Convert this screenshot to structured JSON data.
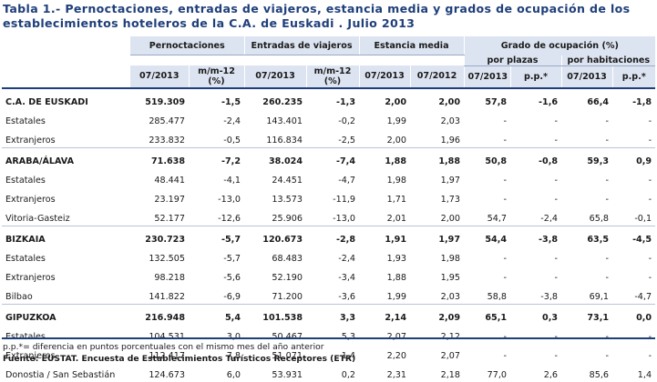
{
  "title": "Tabla 1.- Pernoctaciones, entradas de viajeros, estancia media y grados de ocupación de los establecimientos hoteleros de la C.A. de Euskadi . Julio 2013",
  "headers": {
    "pernoctaciones": "Pernoctaciones",
    "entradas": "Entradas de viajeros",
    "estancia": "Estancia media",
    "grado": "Grado de ocupación (%)",
    "por_plazas": "por plazas",
    "por_habitaciones": "por habitaciones",
    "cols": [
      "07/2013",
      "m/m-12 (%)",
      "07/2013",
      "m/m-12 (%)",
      "07/2013",
      "07/2012",
      "07/2013",
      "p.p.*",
      "07/2013",
      "p.p.*"
    ]
  },
  "rows": [
    {
      "type": "section",
      "label": "C.A. DE EUSKADI",
      "v": [
        "519.309",
        "-1,5",
        "260.235",
        "-1,3",
        "2,00",
        "2,00",
        "57,8",
        "-1,6",
        "66,4",
        "-1,8"
      ]
    },
    {
      "type": "sub",
      "label": "Estatales",
      "v": [
        "285.477",
        "-2,4",
        "143.401",
        "-0,2",
        "1,99",
        "2,03",
        "-",
        "-",
        "-",
        "-"
      ]
    },
    {
      "type": "sub",
      "label": "Extranjeros",
      "v": [
        "233.832",
        "-0,5",
        "116.834",
        "-2,5",
        "2,00",
        "1,96",
        "-",
        "-",
        "-",
        "-"
      ]
    },
    {
      "type": "section",
      "label": "ARABA/ÁLAVA",
      "v": [
        "71.638",
        "-7,2",
        "38.024",
        "-7,4",
        "1,88",
        "1,88",
        "50,8",
        "-0,8",
        "59,3",
        "0,9"
      ]
    },
    {
      "type": "sub",
      "label": "Estatales",
      "v": [
        "48.441",
        "-4,1",
        "24.451",
        "-4,7",
        "1,98",
        "1,97",
        "-",
        "-",
        "-",
        "-"
      ]
    },
    {
      "type": "sub",
      "label": "Extranjeros",
      "v": [
        "23.197",
        "-13,0",
        "13.573",
        "-11,9",
        "1,71",
        "1,73",
        "-",
        "-",
        "-",
        "-"
      ]
    },
    {
      "type": "sub",
      "label": "Vitoria-Gasteiz",
      "v": [
        "52.177",
        "-12,6",
        "25.906",
        "-13,0",
        "2,01",
        "2,00",
        "54,7",
        "-2,4",
        "65,8",
        "-0,1"
      ]
    },
    {
      "type": "section",
      "label": "BIZKAIA",
      "v": [
        "230.723",
        "-5,7",
        "120.673",
        "-2,8",
        "1,91",
        "1,97",
        "54,4",
        "-3,8",
        "63,5",
        "-4,5"
      ]
    },
    {
      "type": "sub",
      "label": "Estatales",
      "v": [
        "132.505",
        "-5,7",
        "68.483",
        "-2,4",
        "1,93",
        "1,98",
        "-",
        "-",
        "-",
        "-"
      ]
    },
    {
      "type": "sub",
      "label": "Extranjeros",
      "v": [
        "98.218",
        "-5,6",
        "52.190",
        "-3,4",
        "1,88",
        "1,95",
        "-",
        "-",
        "-",
        "-"
      ]
    },
    {
      "type": "sub",
      "label": "Bilbao",
      "v": [
        "141.822",
        "-6,9",
        "71.200",
        "-3,6",
        "1,99",
        "2,03",
        "58,8",
        "-3,8",
        "69,1",
        "-4,7"
      ]
    },
    {
      "type": "section",
      "label": "GIPUZKOA",
      "v": [
        "216.948",
        "5,4",
        "101.538",
        "3,3",
        "2,14",
        "2,09",
        "65,1",
        "0,3",
        "73,1",
        "0,0"
      ]
    },
    {
      "type": "sub",
      "label": "Estatales",
      "v": [
        "104.531",
        "3,0",
        "50.467",
        "5,3",
        "2,07",
        "2,12",
        "-",
        "-",
        "-",
        "-"
      ]
    },
    {
      "type": "sub",
      "label": "Extranjeros",
      "v": [
        "112.417",
        "7,8",
        "51.071",
        "1,4",
        "2,20",
        "2,07",
        "-",
        "-",
        "-",
        "-"
      ]
    },
    {
      "type": "sub",
      "label": "Donostia / San Sebastián",
      "v": [
        "124.673",
        "6,0",
        "53.931",
        "0,2",
        "2,31",
        "2,18",
        "77,0",
        "2,6",
        "85,6",
        "1,4"
      ]
    }
  ],
  "note": "p.p.*= diferencia en puntos porcentuales con el mismo mes del año anterior",
  "source": "Fuente: EUSTAT. Encuesta de Establecimientos Turísticos Receptores (ETR)",
  "colors": {
    "title": "#1f3f7a",
    "header_bg": "#dde4f1"
  }
}
